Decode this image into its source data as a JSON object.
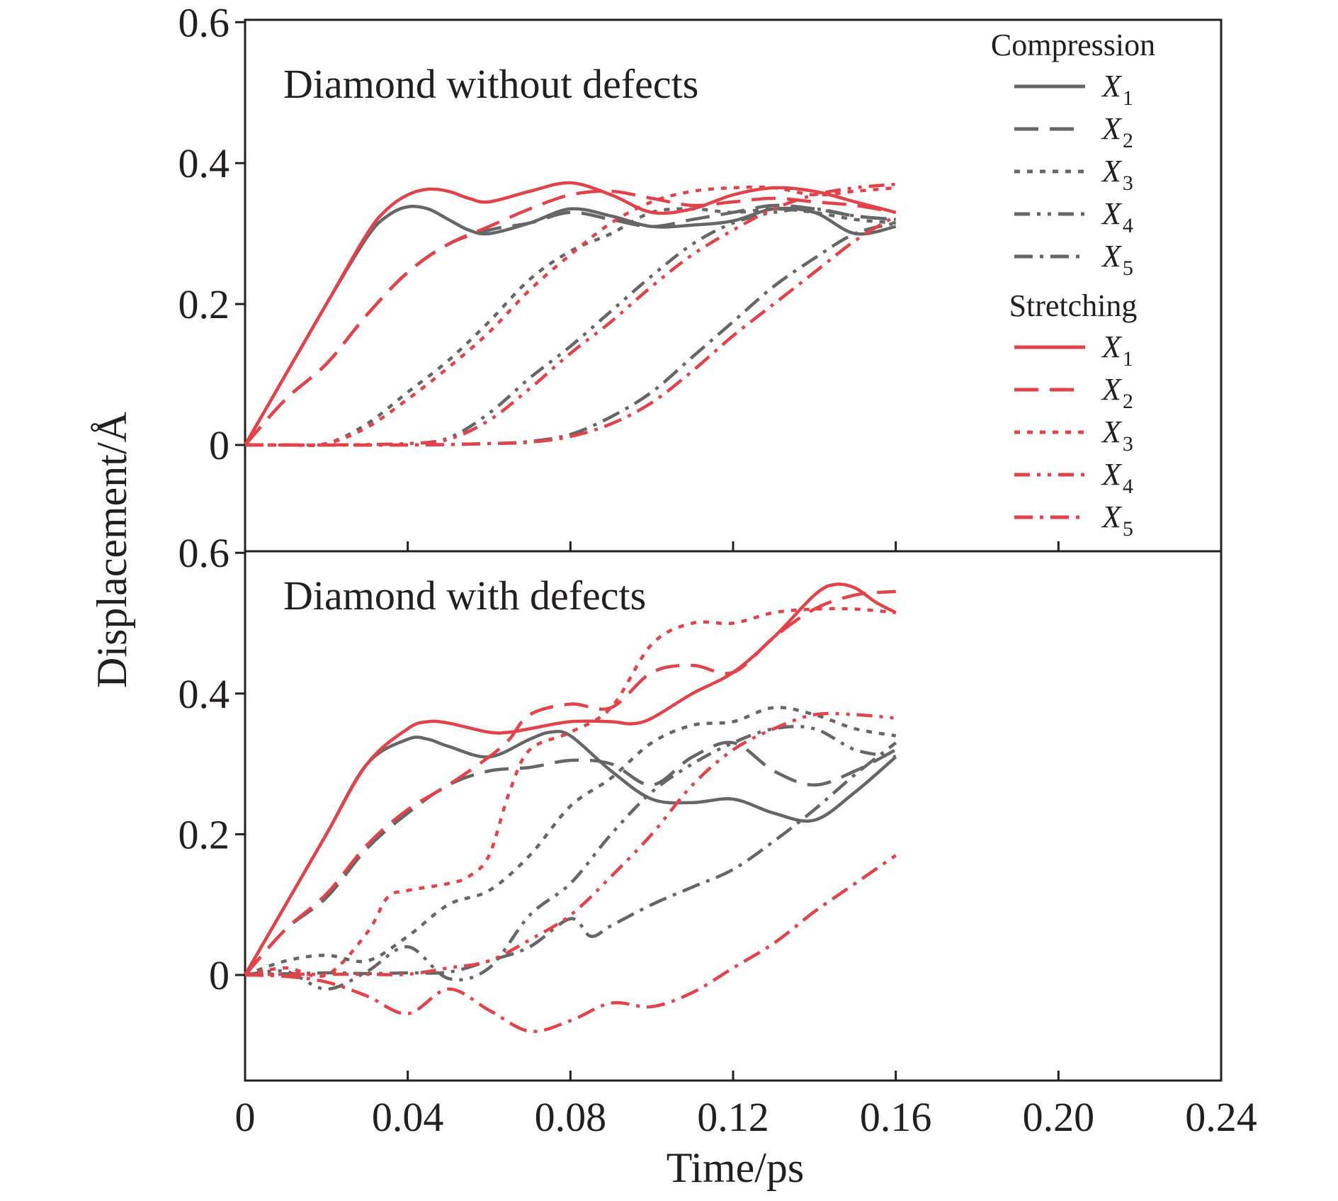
{
  "chart_data": [
    {
      "type": "line",
      "title": "Diamond without defects",
      "xlabel": "Time/ps",
      "ylabel": "Displacement/Å",
      "xlim": [
        0,
        0.24
      ],
      "ylim": [
        -0.15,
        0.6
      ],
      "x_ticks": [
        "0",
        "0.04",
        "0.08",
        "0.12",
        "0.16",
        "0.20",
        "0.24"
      ],
      "y_ticks": [
        "0",
        "0.2",
        "0.4",
        "0.6"
      ],
      "legend_position": "top-right",
      "series": [
        {
          "group": "Compression",
          "name": "X",
          "subscript": "1",
          "dash": "solid",
          "color": "#666666",
          "x": [
            0,
            0.01,
            0.02,
            0.03,
            0.035,
            0.04,
            0.045,
            0.05,
            0.055,
            0.06,
            0.07,
            0.08,
            0.09,
            0.1,
            0.11,
            0.12,
            0.13,
            0.14,
            0.15,
            0.16
          ],
          "y": [
            0,
            0.1,
            0.2,
            0.295,
            0.325,
            0.338,
            0.335,
            0.32,
            0.305,
            0.3,
            0.315,
            0.335,
            0.325,
            0.31,
            0.312,
            0.318,
            0.335,
            0.33,
            0.3,
            0.31
          ]
        },
        {
          "group": "Compression",
          "name": "X",
          "subscript": "2",
          "dash": "long-dash",
          "color": "#666666",
          "x": [
            0,
            0.01,
            0.02,
            0.03,
            0.04,
            0.05,
            0.06,
            0.07,
            0.08,
            0.09,
            0.1,
            0.11,
            0.12,
            0.13,
            0.14,
            0.15,
            0.16
          ],
          "y": [
            0,
            0.065,
            0.115,
            0.185,
            0.245,
            0.285,
            0.305,
            0.315,
            0.33,
            0.32,
            0.31,
            0.32,
            0.33,
            0.34,
            0.335,
            0.325,
            0.32
          ]
        },
        {
          "group": "Compression",
          "name": "X",
          "subscript": "3",
          "dash": "short-dot",
          "color": "#666666",
          "x": [
            0,
            0.01,
            0.02,
            0.03,
            0.04,
            0.05,
            0.06,
            0.07,
            0.08,
            0.09,
            0.1,
            0.11,
            0.12,
            0.13,
            0.14,
            0.15,
            0.16
          ],
          "y": [
            0,
            0,
            0.002,
            0.03,
            0.075,
            0.12,
            0.175,
            0.235,
            0.275,
            0.3,
            0.33,
            0.335,
            0.33,
            0.335,
            0.33,
            0.32,
            0.315
          ]
        },
        {
          "group": "Compression",
          "name": "X",
          "subscript": "4",
          "dash": "dash-dot-dot",
          "color": "#666666",
          "x": [
            0,
            0.02,
            0.04,
            0.05,
            0.06,
            0.07,
            0.08,
            0.09,
            0.1,
            0.11,
            0.12,
            0.13,
            0.14,
            0.15,
            0.16
          ],
          "y": [
            0,
            0,
            0.002,
            0.01,
            0.045,
            0.095,
            0.14,
            0.19,
            0.24,
            0.285,
            0.315,
            0.33,
            0.335,
            0.325,
            0.32
          ]
        },
        {
          "group": "Compression",
          "name": "X",
          "subscript": "5",
          "dash": "dash-dot",
          "color": "#666666",
          "x": [
            0,
            0.04,
            0.06,
            0.07,
            0.08,
            0.09,
            0.1,
            0.11,
            0.12,
            0.13,
            0.14,
            0.15,
            0.16
          ],
          "y": [
            0,
            0,
            0.002,
            0.005,
            0.015,
            0.04,
            0.075,
            0.125,
            0.175,
            0.225,
            0.265,
            0.3,
            0.315
          ]
        },
        {
          "group": "Stretching",
          "name": "X",
          "subscript": "1",
          "dash": "solid",
          "color": "#e2434b",
          "x": [
            0,
            0.01,
            0.02,
            0.03,
            0.035,
            0.04,
            0.045,
            0.05,
            0.055,
            0.06,
            0.07,
            0.08,
            0.09,
            0.1,
            0.11,
            0.12,
            0.13,
            0.14,
            0.15,
            0.16
          ],
          "y": [
            0,
            0.1,
            0.2,
            0.3,
            0.335,
            0.355,
            0.363,
            0.36,
            0.35,
            0.345,
            0.36,
            0.372,
            0.355,
            0.33,
            0.335,
            0.355,
            0.365,
            0.36,
            0.345,
            0.33
          ]
        },
        {
          "group": "Stretching",
          "name": "X",
          "subscript": "2",
          "dash": "long-dash",
          "color": "#e2434b",
          "x": [
            0,
            0.01,
            0.02,
            0.03,
            0.04,
            0.05,
            0.06,
            0.07,
            0.08,
            0.09,
            0.1,
            0.11,
            0.12,
            0.13,
            0.14,
            0.15,
            0.16
          ],
          "y": [
            0,
            0.065,
            0.115,
            0.185,
            0.245,
            0.285,
            0.31,
            0.335,
            0.355,
            0.36,
            0.35,
            0.34,
            0.345,
            0.35,
            0.345,
            0.34,
            0.33
          ]
        },
        {
          "group": "Stretching",
          "name": "X",
          "subscript": "3",
          "dash": "short-dot",
          "color": "#e2434b",
          "x": [
            0,
            0.01,
            0.02,
            0.03,
            0.04,
            0.05,
            0.06,
            0.07,
            0.08,
            0.09,
            0.1,
            0.11,
            0.12,
            0.13,
            0.14,
            0.15,
            0.16
          ],
          "y": [
            0,
            0,
            0.002,
            0.025,
            0.065,
            0.11,
            0.16,
            0.22,
            0.27,
            0.315,
            0.345,
            0.36,
            0.365,
            0.365,
            0.355,
            0.36,
            0.365
          ]
        },
        {
          "group": "Stretching",
          "name": "X",
          "subscript": "4",
          "dash": "dash-dot-dot",
          "color": "#e2434b",
          "x": [
            0,
            0.02,
            0.04,
            0.05,
            0.06,
            0.07,
            0.08,
            0.09,
            0.1,
            0.11,
            0.12,
            0.13,
            0.14,
            0.15,
            0.16
          ],
          "y": [
            0,
            0,
            0.002,
            0.008,
            0.035,
            0.08,
            0.13,
            0.175,
            0.225,
            0.27,
            0.305,
            0.335,
            0.355,
            0.365,
            0.37
          ]
        },
        {
          "group": "Stretching",
          "name": "X",
          "subscript": "5",
          "dash": "dash-dot",
          "color": "#e2434b",
          "x": [
            0,
            0.04,
            0.06,
            0.07,
            0.08,
            0.09,
            0.1,
            0.11,
            0.12,
            0.13,
            0.14,
            0.15,
            0.16
          ],
          "y": [
            0,
            0,
            0.002,
            0.004,
            0.012,
            0.03,
            0.06,
            0.105,
            0.155,
            0.2,
            0.245,
            0.29,
            0.325
          ]
        }
      ]
    },
    {
      "type": "line",
      "title": "Diamond with defects",
      "xlabel": "Time/ps",
      "ylabel": "Displacement/Å",
      "xlim": [
        0,
        0.24
      ],
      "ylim": [
        -0.15,
        0.6
      ],
      "x_ticks": [
        "0",
        "0.04",
        "0.08",
        "0.12",
        "0.16",
        "0.20",
        "0.24"
      ],
      "y_ticks": [
        "0",
        "0.2",
        "0.4",
        "0.6"
      ],
      "series": [
        {
          "group": "Compression",
          "name": "X",
          "subscript": "1",
          "dash": "solid",
          "color": "#666666",
          "x": [
            0,
            0.01,
            0.02,
            0.03,
            0.04,
            0.045,
            0.05,
            0.06,
            0.07,
            0.075,
            0.08,
            0.09,
            0.1,
            0.11,
            0.12,
            0.13,
            0.14,
            0.15,
            0.16
          ],
          "y": [
            0,
            0.1,
            0.2,
            0.3,
            0.335,
            0.335,
            0.325,
            0.31,
            0.335,
            0.345,
            0.34,
            0.29,
            0.25,
            0.245,
            0.25,
            0.23,
            0.22,
            0.26,
            0.31
          ]
        },
        {
          "group": "Compression",
          "name": "X",
          "subscript": "2",
          "dash": "long-dash",
          "color": "#666666",
          "x": [
            0,
            0.01,
            0.02,
            0.03,
            0.04,
            0.05,
            0.06,
            0.07,
            0.08,
            0.09,
            0.1,
            0.11,
            0.12,
            0.13,
            0.14,
            0.15,
            0.16
          ],
          "y": [
            0,
            0.065,
            0.11,
            0.18,
            0.23,
            0.27,
            0.29,
            0.295,
            0.305,
            0.3,
            0.27,
            0.31,
            0.33,
            0.29,
            0.27,
            0.29,
            0.32
          ]
        },
        {
          "group": "Compression",
          "name": "X",
          "subscript": "3",
          "dash": "short-dot",
          "color": "#666666",
          "x": [
            0,
            0.01,
            0.02,
            0.03,
            0.04,
            0.05,
            0.06,
            0.07,
            0.08,
            0.09,
            0.1,
            0.11,
            0.12,
            0.13,
            0.14,
            0.15,
            0.16
          ],
          "y": [
            0,
            0.02,
            0.028,
            0.02,
            0.055,
            0.1,
            0.12,
            0.17,
            0.24,
            0.28,
            0.33,
            0.355,
            0.36,
            0.38,
            0.37,
            0.35,
            0.34
          ]
        },
        {
          "group": "Compression",
          "name": "X",
          "subscript": "4",
          "dash": "dash-dot-dot",
          "color": "#666666",
          "x": [
            0,
            0.01,
            0.02,
            0.03,
            0.04,
            0.05,
            0.06,
            0.07,
            0.08,
            0.09,
            0.1,
            0.11,
            0.12,
            0.13,
            0.14,
            0.15,
            0.16
          ],
          "y": [
            0,
            0.005,
            -0.02,
            0.005,
            0.04,
            -0.005,
            0.01,
            0.085,
            0.13,
            0.2,
            0.26,
            0.3,
            0.33,
            0.35,
            0.35,
            0.32,
            0.31
          ]
        },
        {
          "group": "Compression",
          "name": "X",
          "subscript": "5",
          "dash": "dash-dot",
          "color": "#666666",
          "x": [
            0,
            0.02,
            0.03,
            0.04,
            0.05,
            0.06,
            0.07,
            0.08,
            0.085,
            0.09,
            0.1,
            0.11,
            0.12,
            0.13,
            0.14,
            0.15,
            0.16
          ],
          "y": [
            0,
            0.003,
            0.002,
            0.003,
            0.004,
            0.02,
            0.04,
            0.08,
            0.055,
            0.07,
            0.1,
            0.125,
            0.15,
            0.19,
            0.235,
            0.285,
            0.33
          ]
        },
        {
          "group": "Stretching",
          "name": "X",
          "subscript": "1",
          "dash": "solid",
          "color": "#e2434b",
          "x": [
            0,
            0.01,
            0.02,
            0.03,
            0.04,
            0.045,
            0.05,
            0.06,
            0.065,
            0.07,
            0.08,
            0.09,
            0.095,
            0.1,
            0.11,
            0.12,
            0.13,
            0.14,
            0.145,
            0.15,
            0.155,
            0.16
          ],
          "y": [
            0,
            0.1,
            0.2,
            0.3,
            0.35,
            0.36,
            0.358,
            0.345,
            0.345,
            0.35,
            0.36,
            0.36,
            0.357,
            0.365,
            0.4,
            0.43,
            0.48,
            0.54,
            0.555,
            0.55,
            0.53,
            0.515
          ]
        },
        {
          "group": "Stretching",
          "name": "X",
          "subscript": "2",
          "dash": "long-dash",
          "color": "#e2434b",
          "x": [
            0,
            0.01,
            0.02,
            0.03,
            0.04,
            0.05,
            0.06,
            0.065,
            0.07,
            0.08,
            0.09,
            0.1,
            0.11,
            0.12,
            0.13,
            0.14,
            0.15,
            0.16
          ],
          "y": [
            0,
            0.065,
            0.115,
            0.185,
            0.235,
            0.27,
            0.31,
            0.335,
            0.37,
            0.385,
            0.38,
            0.43,
            0.44,
            0.43,
            0.48,
            0.52,
            0.54,
            0.545
          ]
        },
        {
          "group": "Stretching",
          "name": "X",
          "subscript": "3",
          "dash": "short-dot",
          "color": "#e2434b",
          "x": [
            0,
            0.01,
            0.02,
            0.03,
            0.035,
            0.04,
            0.05,
            0.055,
            0.06,
            0.065,
            0.07,
            0.08,
            0.09,
            0.1,
            0.11,
            0.12,
            0.13,
            0.14,
            0.15,
            0.16
          ],
          "y": [
            0,
            0.01,
            0.0,
            0.06,
            0.11,
            0.12,
            0.13,
            0.14,
            0.17,
            0.26,
            0.32,
            0.345,
            0.38,
            0.47,
            0.5,
            0.5,
            0.515,
            0.52,
            0.52,
            0.515
          ]
        },
        {
          "group": "Stretching",
          "name": "X",
          "subscript": "4",
          "dash": "dash-dot-dot",
          "color": "#e2434b",
          "x": [
            0,
            0.01,
            0.02,
            0.03,
            0.04,
            0.05,
            0.06,
            0.07,
            0.08,
            0.09,
            0.1,
            0.11,
            0.12,
            0.13,
            0.14,
            0.15,
            0.16
          ],
          "y": [
            0,
            0.001,
            0.001,
            0.001,
            0.001,
            0.01,
            0.02,
            0.05,
            0.085,
            0.14,
            0.2,
            0.27,
            0.32,
            0.35,
            0.37,
            0.37,
            0.365
          ]
        },
        {
          "group": "Stretching",
          "name": "X",
          "subscript": "5",
          "dash": "dash-dot",
          "color": "#e2434b",
          "x": [
            0,
            0.01,
            0.02,
            0.03,
            0.04,
            0.05,
            0.06,
            0.07,
            0.08,
            0.09,
            0.1,
            0.11,
            0.12,
            0.13,
            0.14,
            0.15,
            0.16
          ],
          "y": [
            0,
            -0.002,
            -0.01,
            -0.03,
            -0.055,
            -0.02,
            -0.05,
            -0.08,
            -0.065,
            -0.04,
            -0.045,
            -0.025,
            0.01,
            0.045,
            0.09,
            0.13,
            0.17
          ]
        }
      ]
    }
  ],
  "legend": {
    "compression_header": "Compression",
    "stretching_header": "Stretching",
    "compression_color": "#666666",
    "stretching_color": "#e2434b"
  }
}
